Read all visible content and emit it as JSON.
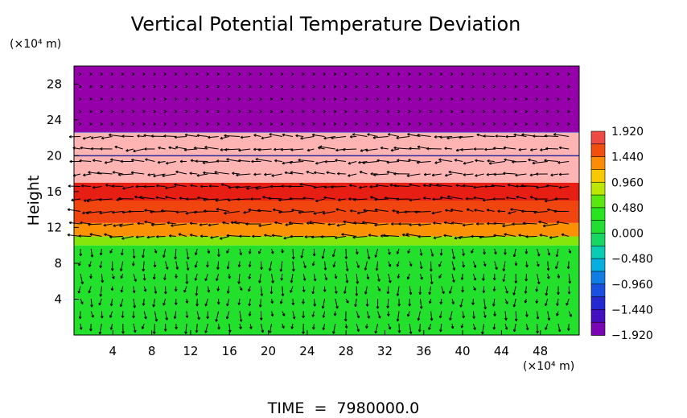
{
  "chart_data": {
    "type": "heatmap",
    "title": "Vertical Potential Temperature Deviation",
    "ylabel": "Height",
    "x_unit_text": "(×10⁴ m)",
    "y_unit_text": "(×10⁴ m)",
    "footer": "TIME  =  7980000.0",
    "xlim": [
      0,
      52
    ],
    "ylim": [
      0,
      30
    ],
    "x_ticks": [
      4,
      8,
      12,
      16,
      20,
      24,
      28,
      32,
      36,
      40,
      44,
      48
    ],
    "x_tick_labels": [
      "4",
      "8",
      "12",
      "16",
      "20",
      "24",
      "28",
      "32",
      "36",
      "40",
      "44",
      "48"
    ],
    "y_ticks": [
      4,
      8,
      12,
      16,
      20,
      24,
      28
    ],
    "y_tick_labels": [
      "4",
      "8",
      "12",
      "16",
      "20",
      "24",
      "28"
    ],
    "colorbar": {
      "min": -1.92,
      "max": 1.92,
      "tick_values": [
        1.92,
        1.44,
        0.96,
        0.48,
        0.0,
        -0.48,
        -0.96,
        -1.44,
        -1.92
      ],
      "tick_labels": [
        "1.920",
        "1.440",
        "0.960",
        "0.480",
        "0.000",
        "−0.480",
        "−0.960",
        "−1.440",
        "−1.920"
      ]
    },
    "layers": [
      {
        "y0": 0,
        "y1": 10,
        "value": 0.2
      },
      {
        "y0": 10,
        "y1": 11,
        "value": 0.7
      },
      {
        "y0": 11,
        "y1": 12.5,
        "value": 1.3
      },
      {
        "y0": 12.5,
        "y1": 15,
        "value": 1.6
      },
      {
        "y0": 15,
        "y1": 17,
        "value": 1.75
      },
      {
        "y0": 17,
        "y1": 20,
        "value": 1.92
      },
      {
        "y0": 20,
        "y1": 22.6,
        "value": 1.92
      },
      {
        "y0": 22.6,
        "y1": 30,
        "value": -1.92
      }
    ],
    "grid": false,
    "legend": "colorbar right"
  }
}
